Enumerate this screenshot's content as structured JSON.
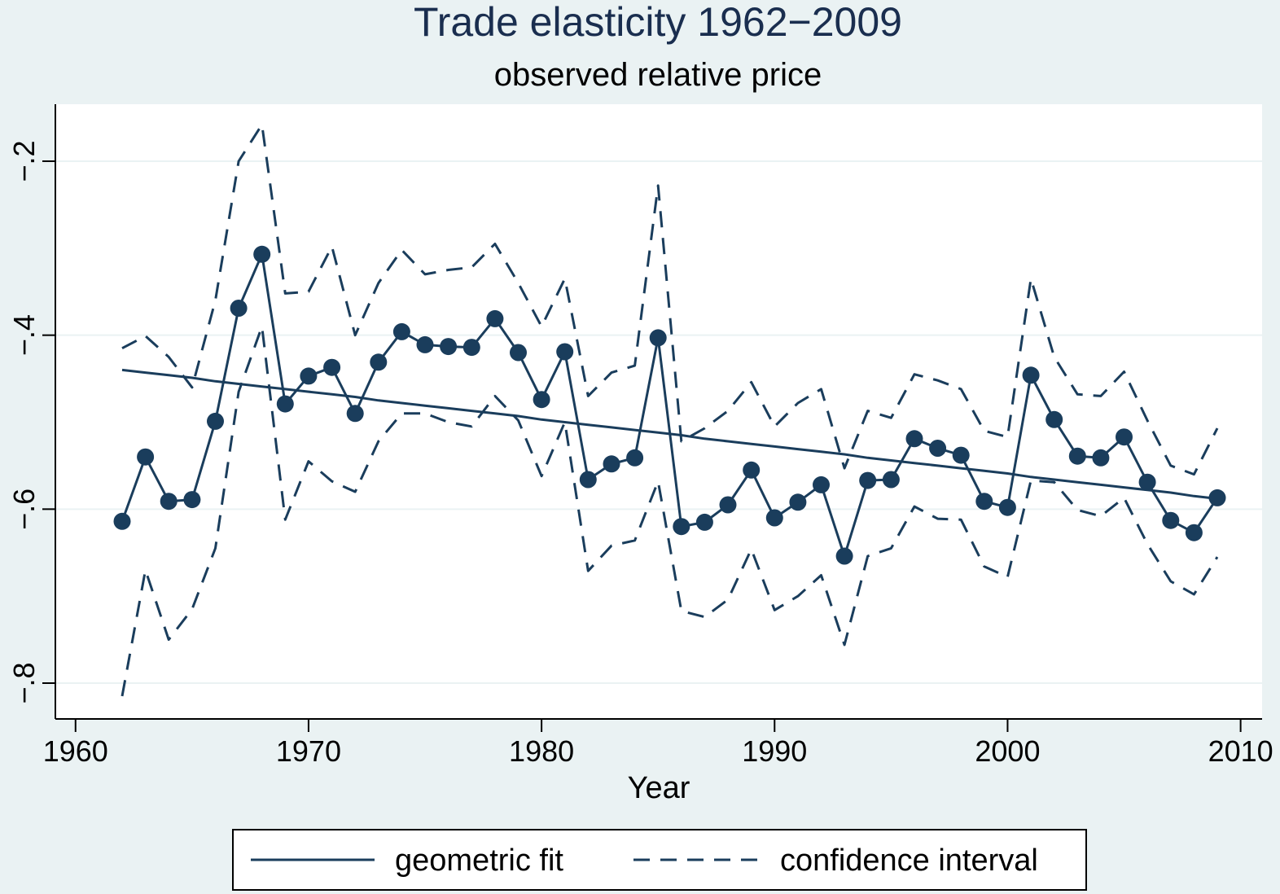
{
  "chart_data": {
    "type": "line",
    "title": "Trade elasticity 1962−2009",
    "subtitle": "observed relative price",
    "xlabel": "Year",
    "ylabel": "",
    "xlim": [
      1962,
      2010
    ],
    "ylim": [
      -0.83,
      -0.13
    ],
    "x_ticks": [
      {
        "value": 1960,
        "label": "1960"
      },
      {
        "value": 1970,
        "label": "1970"
      },
      {
        "value": 1980,
        "label": "1980"
      },
      {
        "value": 1990,
        "label": "1990"
      },
      {
        "value": 2000,
        "label": "2000"
      },
      {
        "value": 2010,
        "label": "2010"
      }
    ],
    "y_ticks": [
      {
        "value": -0.2,
        "label": "−.2"
      },
      {
        "value": -0.4,
        "label": "−.4"
      },
      {
        "value": -0.6,
        "label": "−.6"
      },
      {
        "value": -0.8,
        "label": "−.8"
      }
    ],
    "grid": true,
    "legend_position": "bottom",
    "x": [
      1962,
      1963,
      1964,
      1965,
      1966,
      1967,
      1968,
      1969,
      1970,
      1971,
      1972,
      1973,
      1974,
      1975,
      1976,
      1977,
      1978,
      1979,
      1980,
      1981,
      1982,
      1983,
      1984,
      1985,
      1986,
      1987,
      1988,
      1989,
      1990,
      1991,
      1992,
      1993,
      1994,
      1995,
      1996,
      1997,
      1998,
      1999,
      2000,
      2001,
      2002,
      2003,
      2004,
      2005,
      2006,
      2007,
      2008,
      2009
    ],
    "series": [
      {
        "role": "estimate",
        "style": "solid-markers",
        "values": [
          -0.614,
          -0.54,
          -0.591,
          -0.589,
          -0.499,
          -0.369,
          -0.307,
          -0.479,
          -0.447,
          -0.437,
          -0.49,
          -0.431,
          -0.396,
          -0.411,
          -0.413,
          -0.414,
          -0.381,
          -0.42,
          -0.474,
          -0.419,
          -0.566,
          -0.548,
          -0.541,
          -0.403,
          -0.62,
          -0.615,
          -0.595,
          -0.555,
          -0.61,
          -0.592,
          -0.572,
          -0.654,
          -0.567,
          -0.566,
          -0.519,
          -0.53,
          -0.538,
          -0.591,
          -0.598,
          -0.446,
          -0.497,
          -0.539,
          -0.541,
          -0.517,
          -0.569,
          -0.613,
          -0.627,
          -0.587
        ]
      },
      {
        "name": "geometric fit",
        "style": "solid",
        "values": [
          -0.44,
          -0.443,
          -0.446,
          -0.449,
          -0.453,
          -0.456,
          -0.459,
          -0.462,
          -0.465,
          -0.468,
          -0.471,
          -0.475,
          -0.478,
          -0.481,
          -0.484,
          -0.487,
          -0.49,
          -0.493,
          -0.497,
          -0.5,
          -0.503,
          -0.506,
          -0.509,
          -0.512,
          -0.515,
          -0.519,
          -0.522,
          -0.525,
          -0.528,
          -0.531,
          -0.534,
          -0.537,
          -0.541,
          -0.544,
          -0.547,
          -0.55,
          -0.553,
          -0.556,
          -0.559,
          -0.563,
          -0.566,
          -0.569,
          -0.572,
          -0.575,
          -0.578,
          -0.581,
          -0.585,
          -0.588
        ]
      },
      {
        "name": "confidence interval",
        "style": "dashed",
        "values": [
          -0.415,
          -0.401,
          -0.425,
          -0.46,
          -0.36,
          -0.2,
          -0.158,
          -0.352,
          -0.35,
          -0.298,
          -0.4,
          -0.34,
          -0.302,
          -0.33,
          -0.325,
          -0.322,
          -0.295,
          -0.34,
          -0.39,
          -0.335,
          -0.47,
          -0.443,
          -0.435,
          -0.228,
          -0.522,
          -0.507,
          -0.487,
          -0.454,
          -0.505,
          -0.478,
          -0.462,
          -0.553,
          -0.487,
          -0.495,
          -0.445,
          -0.452,
          -0.462,
          -0.51,
          -0.517,
          -0.335,
          -0.425,
          -0.468,
          -0.47,
          -0.442,
          -0.498,
          -0.55,
          -0.56,
          -0.507
        ]
      },
      {
        "role": "confidence-lower",
        "style": "dashed",
        "values": [
          -0.815,
          -0.67,
          -0.75,
          -0.715,
          -0.645,
          -0.465,
          -0.39,
          -0.612,
          -0.545,
          -0.568,
          -0.58,
          -0.522,
          -0.49,
          -0.49,
          -0.5,
          -0.505,
          -0.47,
          -0.498,
          -0.562,
          -0.5,
          -0.671,
          -0.642,
          -0.636,
          -0.568,
          -0.717,
          -0.724,
          -0.704,
          -0.646,
          -0.716,
          -0.7,
          -0.676,
          -0.756,
          -0.654,
          -0.645,
          -0.597,
          -0.611,
          -0.612,
          -0.666,
          -0.678,
          -0.567,
          -0.569,
          -0.601,
          -0.608,
          -0.587,
          -0.64,
          -0.683,
          -0.698,
          -0.655
        ]
      }
    ]
  }
}
